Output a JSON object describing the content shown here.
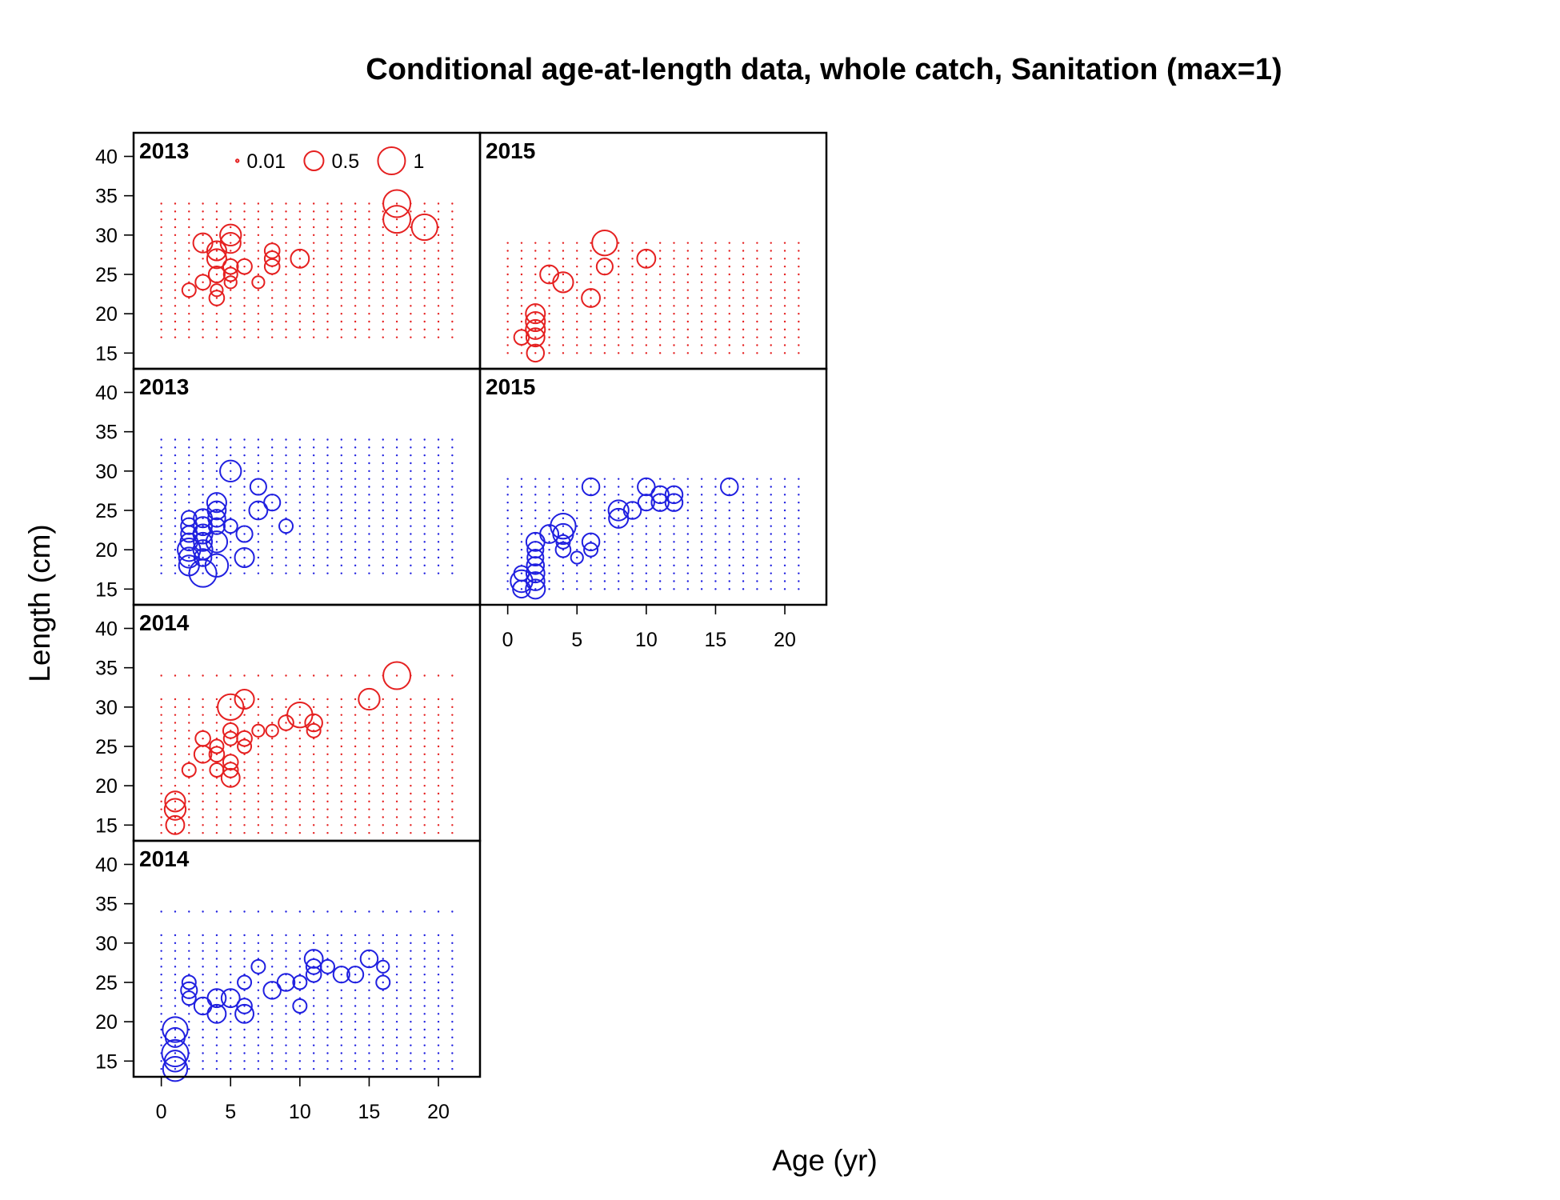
{
  "chart_data": {
    "type": "scatter",
    "title": "Conditional age-at-length data, whole catch, Sanitation (max=1)",
    "xlabel": "Age (yr)",
    "ylabel": "Length (cm)",
    "xlim": [
      -2,
      23
    ],
    "ylim": [
      13,
      43
    ],
    "x_ticks": [
      "0",
      "5",
      "10",
      "15",
      "20"
    ],
    "y_ticks": [
      "15",
      "20",
      "25",
      "30",
      "35",
      "40"
    ],
    "colors": {
      "female": "#e52020",
      "male": "#2020e0",
      "frame": "#000000"
    },
    "legend": {
      "placement": "top of first panel",
      "entries": [
        {
          "label": "0.01",
          "value": 0.01
        },
        {
          "label": "0.5",
          "value": 0.5
        },
        {
          "label": "1",
          "value": 1
        }
      ]
    },
    "panels": [
      {
        "year": "2013",
        "sex": "female",
        "grid_col": 0,
        "grid_row": 0,
        "grid_lengths": [
          17,
          18,
          19,
          20,
          21,
          22,
          23,
          24,
          25,
          26,
          27,
          28,
          29,
          30,
          31,
          32,
          33,
          34
        ],
        "grid_max_age": 21,
        "points": [
          [
            2,
            23,
            0.25
          ],
          [
            3,
            29,
            0.5
          ],
          [
            3,
            24,
            0.3
          ],
          [
            4,
            28,
            0.5
          ],
          [
            4,
            27,
            0.5
          ],
          [
            4,
            25,
            0.35
          ],
          [
            4,
            23,
            0.2
          ],
          [
            4,
            22,
            0.3
          ],
          [
            5,
            30,
            0.6
          ],
          [
            5,
            29,
            0.55
          ],
          [
            5,
            26,
            0.3
          ],
          [
            5,
            25,
            0.25
          ],
          [
            5,
            24,
            0.2
          ],
          [
            6,
            26,
            0.3
          ],
          [
            7,
            24,
            0.2
          ],
          [
            8,
            28,
            0.3
          ],
          [
            8,
            27,
            0.3
          ],
          [
            8,
            26,
            0.3
          ],
          [
            10,
            27,
            0.45
          ],
          [
            17,
            34,
            1
          ],
          [
            17,
            32,
            1
          ],
          [
            19,
            31,
            0.9
          ]
        ]
      },
      {
        "year": "2015",
        "sex": "female",
        "grid_col": 1,
        "grid_row": 0,
        "grid_lengths": [
          15,
          16,
          17,
          18,
          19,
          20,
          21,
          22,
          23,
          24,
          25,
          26,
          27,
          28,
          29
        ],
        "grid_max_age": 21,
        "points": [
          [
            1,
            17,
            0.3
          ],
          [
            2,
            20,
            0.5
          ],
          [
            2,
            19,
            0.5
          ],
          [
            2,
            18,
            0.5
          ],
          [
            2,
            17,
            0.45
          ],
          [
            2,
            15,
            0.4
          ],
          [
            3,
            25,
            0.45
          ],
          [
            4,
            24,
            0.55
          ],
          [
            6,
            22,
            0.45
          ],
          [
            7,
            29,
            0.85
          ],
          [
            7,
            26,
            0.35
          ],
          [
            10,
            27,
            0.45
          ]
        ]
      },
      {
        "year": "2013",
        "sex": "male",
        "grid_col": 0,
        "grid_row": 1,
        "grid_lengths": [
          17,
          18,
          19,
          20,
          21,
          22,
          23,
          24,
          25,
          26,
          27,
          28,
          29,
          30,
          31,
          32,
          33,
          34
        ],
        "grid_max_age": 21,
        "points": [
          [
            2,
            24,
            0.3
          ],
          [
            2,
            23,
            0.35
          ],
          [
            2,
            22,
            0.35
          ],
          [
            2,
            21,
            0.4
          ],
          [
            2,
            20,
            0.7
          ],
          [
            2,
            19,
            0.55
          ],
          [
            2,
            18,
            0.55
          ],
          [
            3,
            24,
            0.45
          ],
          [
            3,
            23,
            0.45
          ],
          [
            3,
            22,
            0.5
          ],
          [
            3,
            21,
            0.45
          ],
          [
            3,
            20,
            0.5
          ],
          [
            3,
            19,
            0.4
          ],
          [
            3,
            17,
            1
          ],
          [
            4,
            26,
            0.5
          ],
          [
            4,
            25,
            0.45
          ],
          [
            4,
            24,
            0.4
          ],
          [
            4,
            23,
            0.35
          ],
          [
            4,
            21,
            0.6
          ],
          [
            4,
            18,
            0.7
          ],
          [
            5,
            30,
            0.6
          ],
          [
            5,
            23,
            0.25
          ],
          [
            6,
            22,
            0.35
          ],
          [
            6,
            19,
            0.5
          ],
          [
            7,
            28,
            0.35
          ],
          [
            7,
            25,
            0.45
          ],
          [
            8,
            26,
            0.35
          ],
          [
            9,
            23,
            0.25
          ]
        ]
      },
      {
        "year": "2015",
        "sex": "male",
        "grid_col": 1,
        "grid_row": 1,
        "grid_lengths": [
          15,
          16,
          17,
          18,
          19,
          20,
          21,
          22,
          23,
          24,
          25,
          26,
          27,
          28,
          29
        ],
        "grid_max_age": 21,
        "points": [
          [
            1,
            17,
            0.3
          ],
          [
            1,
            16,
            0.65
          ],
          [
            1,
            15,
            0.4
          ],
          [
            2,
            21,
            0.45
          ],
          [
            2,
            20,
            0.35
          ],
          [
            2,
            19,
            0.35
          ],
          [
            2,
            18,
            0.4
          ],
          [
            2,
            17,
            0.45
          ],
          [
            2,
            16,
            0.45
          ],
          [
            2,
            15,
            0.5
          ],
          [
            3,
            22,
            0.45
          ],
          [
            4,
            23,
            0.85
          ],
          [
            4,
            22,
            0.55
          ],
          [
            4,
            21,
            0.25
          ],
          [
            4,
            20,
            0.3
          ],
          [
            5,
            19,
            0.2
          ],
          [
            6,
            28,
            0.4
          ],
          [
            6,
            21,
            0.4
          ],
          [
            6,
            20,
            0.25
          ],
          [
            8,
            25,
            0.55
          ],
          [
            8,
            24,
            0.5
          ],
          [
            9,
            25,
            0.4
          ],
          [
            10,
            28,
            0.4
          ],
          [
            10,
            26,
            0.35
          ],
          [
            11,
            27,
            0.4
          ],
          [
            11,
            26,
            0.4
          ],
          [
            12,
            27,
            0.4
          ],
          [
            12,
            26,
            0.4
          ],
          [
            16,
            28,
            0.4
          ]
        ]
      },
      {
        "year": "2014",
        "sex": "female",
        "grid_col": 0,
        "grid_row": 2,
        "grid_lengths": [
          14,
          15,
          16,
          17,
          18,
          19,
          20,
          21,
          22,
          23,
          24,
          25,
          26,
          27,
          28,
          29,
          30,
          31,
          34
        ],
        "grid_max_age": 21,
        "points": [
          [
            1,
            18,
            0.55
          ],
          [
            1,
            17,
            0.6
          ],
          [
            1,
            15,
            0.45
          ],
          [
            2,
            22,
            0.25
          ],
          [
            3,
            26,
            0.3
          ],
          [
            3,
            24,
            0.4
          ],
          [
            4,
            25,
            0.25
          ],
          [
            4,
            24,
            0.3
          ],
          [
            4,
            22,
            0.25
          ],
          [
            5,
            30,
            0.9
          ],
          [
            5,
            27,
            0.3
          ],
          [
            5,
            26,
            0.25
          ],
          [
            5,
            23,
            0.3
          ],
          [
            5,
            22,
            0.3
          ],
          [
            5,
            21,
            0.45
          ],
          [
            6,
            31,
            0.5
          ],
          [
            6,
            26,
            0.3
          ],
          [
            6,
            25,
            0.25
          ],
          [
            7,
            27,
            0.2
          ],
          [
            8,
            27,
            0.2
          ],
          [
            9,
            28,
            0.3
          ],
          [
            10,
            29,
            0.85
          ],
          [
            11,
            28,
            0.4
          ],
          [
            11,
            27,
            0.25
          ],
          [
            15,
            31,
            0.6
          ],
          [
            17,
            34,
            1
          ]
        ]
      },
      {
        "year": "2014",
        "sex": "male",
        "grid_col": 0,
        "grid_row": 3,
        "grid_lengths": [
          14,
          15,
          16,
          17,
          18,
          19,
          20,
          21,
          22,
          23,
          24,
          25,
          26,
          27,
          28,
          29,
          30,
          31,
          34
        ],
        "grid_max_age": 21,
        "points": [
          [
            1,
            19,
            0.85
          ],
          [
            1,
            18,
            0.5
          ],
          [
            1,
            16,
            0.95
          ],
          [
            1,
            15,
            0.6
          ],
          [
            1,
            14,
            0.8
          ],
          [
            2,
            25,
            0.25
          ],
          [
            2,
            24,
            0.35
          ],
          [
            2,
            23,
            0.25
          ],
          [
            3,
            22,
            0.4
          ],
          [
            4,
            23,
            0.45
          ],
          [
            4,
            21,
            0.45
          ],
          [
            5,
            23,
            0.45
          ],
          [
            6,
            25,
            0.25
          ],
          [
            6,
            22,
            0.3
          ],
          [
            6,
            21,
            0.45
          ],
          [
            7,
            27,
            0.25
          ],
          [
            8,
            24,
            0.4
          ],
          [
            9,
            25,
            0.4
          ],
          [
            10,
            25,
            0.25
          ],
          [
            10,
            22,
            0.25
          ],
          [
            11,
            28,
            0.45
          ],
          [
            11,
            27,
            0.3
          ],
          [
            11,
            26,
            0.3
          ],
          [
            12,
            27,
            0.25
          ],
          [
            13,
            26,
            0.35
          ],
          [
            14,
            26,
            0.35
          ],
          [
            15,
            28,
            0.4
          ],
          [
            16,
            27,
            0.2
          ],
          [
            16,
            25,
            0.25
          ]
        ]
      }
    ]
  }
}
